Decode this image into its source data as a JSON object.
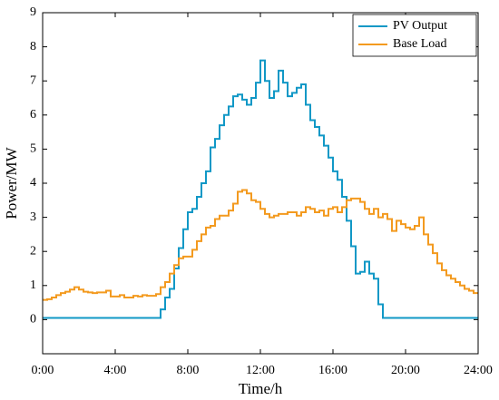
{
  "chart_data": {
    "type": "line",
    "step": true,
    "xlabel": "Time/h",
    "ylabel": "Power/MW",
    "x": [
      0,
      0.25,
      0.5,
      0.75,
      1,
      1.25,
      1.5,
      1.75,
      2,
      2.25,
      2.5,
      2.75,
      3,
      3.25,
      3.5,
      3.75,
      4,
      4.25,
      4.5,
      4.75,
      5,
      5.25,
      5.5,
      5.75,
      6,
      6.25,
      6.5,
      6.75,
      7,
      7.25,
      7.5,
      7.75,
      8,
      8.25,
      8.5,
      8.75,
      9,
      9.25,
      9.5,
      9.75,
      10,
      10.25,
      10.5,
      10.75,
      11,
      11.25,
      11.5,
      11.75,
      12,
      12.25,
      12.5,
      12.75,
      13,
      13.25,
      13.5,
      13.75,
      14,
      14.25,
      14.5,
      14.75,
      15,
      15.25,
      15.5,
      15.75,
      16,
      16.25,
      16.5,
      16.75,
      17,
      17.25,
      17.5,
      17.75,
      18,
      18.25,
      18.5,
      18.75,
      19,
      19.25,
      19.5,
      19.75,
      20,
      20.25,
      20.5,
      20.75,
      21,
      21.25,
      21.5,
      21.75,
      22,
      22.25,
      22.5,
      22.75,
      23,
      23.25,
      23.5,
      23.75
    ],
    "series": [
      {
        "name": "PV Output",
        "color": "#1198c6",
        "values": [
          0.05,
          0.05,
          0.05,
          0.05,
          0.05,
          0.05,
          0.05,
          0.05,
          0.05,
          0.05,
          0.05,
          0.05,
          0.05,
          0.05,
          0.05,
          0.05,
          0.05,
          0.05,
          0.05,
          0.05,
          0.05,
          0.05,
          0.05,
          0.05,
          0.05,
          0.05,
          0.3,
          0.65,
          0.9,
          1.5,
          2.1,
          2.65,
          3.15,
          3.25,
          3.6,
          4.0,
          4.35,
          5.05,
          5.3,
          5.7,
          6.0,
          6.25,
          6.55,
          6.6,
          6.45,
          6.3,
          6.5,
          6.95,
          7.6,
          7.0,
          6.5,
          6.7,
          7.3,
          6.95,
          6.55,
          6.65,
          6.8,
          6.9,
          6.3,
          5.85,
          5.65,
          5.4,
          5.1,
          4.75,
          4.35,
          4.1,
          3.6,
          2.9,
          2.15,
          1.35,
          1.4,
          1.7,
          1.35,
          1.2,
          0.45,
          0.05,
          0.05,
          0.05,
          0.05,
          0.05,
          0.05,
          0.05,
          0.05,
          0.05,
          0.05,
          0.05,
          0.05,
          0.05,
          0.05,
          0.05,
          0.05,
          0.05,
          0.05,
          0.05,
          0.05,
          0.05
        ]
      },
      {
        "name": "Base Load",
        "color": "#f39a1f",
        "values": [
          0.58,
          0.6,
          0.65,
          0.72,
          0.78,
          0.82,
          0.88,
          0.95,
          0.88,
          0.82,
          0.8,
          0.78,
          0.8,
          0.8,
          0.85,
          0.68,
          0.68,
          0.72,
          0.65,
          0.65,
          0.7,
          0.68,
          0.72,
          0.7,
          0.7,
          0.75,
          0.95,
          1.1,
          1.35,
          1.6,
          1.8,
          1.85,
          1.85,
          2.05,
          2.3,
          2.5,
          2.7,
          2.75,
          2.95,
          3.05,
          3.05,
          3.2,
          3.4,
          3.75,
          3.8,
          3.7,
          3.5,
          3.45,
          3.25,
          3.1,
          3.0,
          3.05,
          3.1,
          3.1,
          3.15,
          3.15,
          3.05,
          3.15,
          3.3,
          3.25,
          3.15,
          3.2,
          3.05,
          3.25,
          3.3,
          3.15,
          3.3,
          3.5,
          3.55,
          3.55,
          3.45,
          3.25,
          3.1,
          3.25,
          3.0,
          3.1,
          2.95,
          2.6,
          2.9,
          2.8,
          2.7,
          2.65,
          2.75,
          3.0,
          2.5,
          2.2,
          1.95,
          1.65,
          1.45,
          1.3,
          1.2,
          1.1,
          1.0,
          0.9,
          0.85,
          0.78
        ]
      }
    ],
    "xlim": [
      0,
      24
    ],
    "xticks": [
      {
        "value": 0,
        "label": "0:00"
      },
      {
        "value": 4,
        "label": "4:00"
      },
      {
        "value": 8,
        "label": "8:00"
      },
      {
        "value": 12,
        "label": "12:00"
      },
      {
        "value": 16,
        "label": "16:00"
      },
      {
        "value": 20,
        "label": "20:00"
      },
      {
        "value": 24,
        "label": "24:00"
      }
    ],
    "ylim": [
      -1,
      9
    ],
    "yticks": [
      0,
      1,
      2,
      3,
      4,
      5,
      6,
      7,
      8,
      9
    ],
    "legend": "upper right",
    "grid": false
  }
}
